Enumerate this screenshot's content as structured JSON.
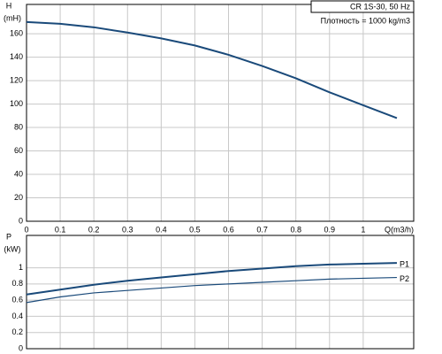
{
  "chart_data": [
    {
      "type": "line",
      "title": "CR 1S-30, 50 Hz",
      "annotation": "Плотность = 1000 kg/m3",
      "ylabel": "H",
      "yunit": "(mH)",
      "xlabel": "Q(m3/h)",
      "x": [
        0,
        0.1,
        0.2,
        0.3,
        0.4,
        0.5,
        0.6,
        0.7,
        0.8,
        0.9,
        1.0,
        1.1
      ],
      "series": [
        {
          "color": "#1a4a7a",
          "values": [
            170,
            168.5,
            165.5,
            161,
            156,
            150,
            142,
            132.5,
            122,
            110,
            99,
            88
          ]
        }
      ],
      "xlim": [
        0,
        1.15
      ],
      "xticks": [
        0,
        0.1,
        0.2,
        0.3,
        0.4,
        0.5,
        0.6,
        0.7,
        0.8,
        0.9,
        1
      ],
      "ylim": [
        0,
        185
      ],
      "yticks": [
        0,
        20,
        40,
        60,
        80,
        100,
        120,
        140,
        160
      ],
      "grid": true
    },
    {
      "type": "line",
      "ylabel": "P",
      "yunit": "(kW)",
      "x": [
        0,
        0.1,
        0.2,
        0.3,
        0.4,
        0.5,
        0.6,
        0.7,
        0.8,
        0.9,
        1.0,
        1.1
      ],
      "series": [
        {
          "name": "P1",
          "color": "#1a4a7a",
          "values": [
            0.67,
            0.73,
            0.79,
            0.84,
            0.88,
            0.92,
            0.96,
            0.99,
            1.02,
            1.04,
            1.05,
            1.06
          ]
        },
        {
          "name": "P2",
          "color": "#1a4a7a",
          "values": [
            0.57,
            0.64,
            0.69,
            0.72,
            0.75,
            0.78,
            0.8,
            0.82,
            0.84,
            0.86,
            0.87,
            0.88
          ]
        }
      ],
      "xlim": [
        0,
        1.15
      ],
      "ylim": [
        0,
        1.4
      ],
      "yticks": [
        0,
        0.2,
        0.4,
        0.6,
        0.8,
        1
      ],
      "grid": true
    }
  ]
}
